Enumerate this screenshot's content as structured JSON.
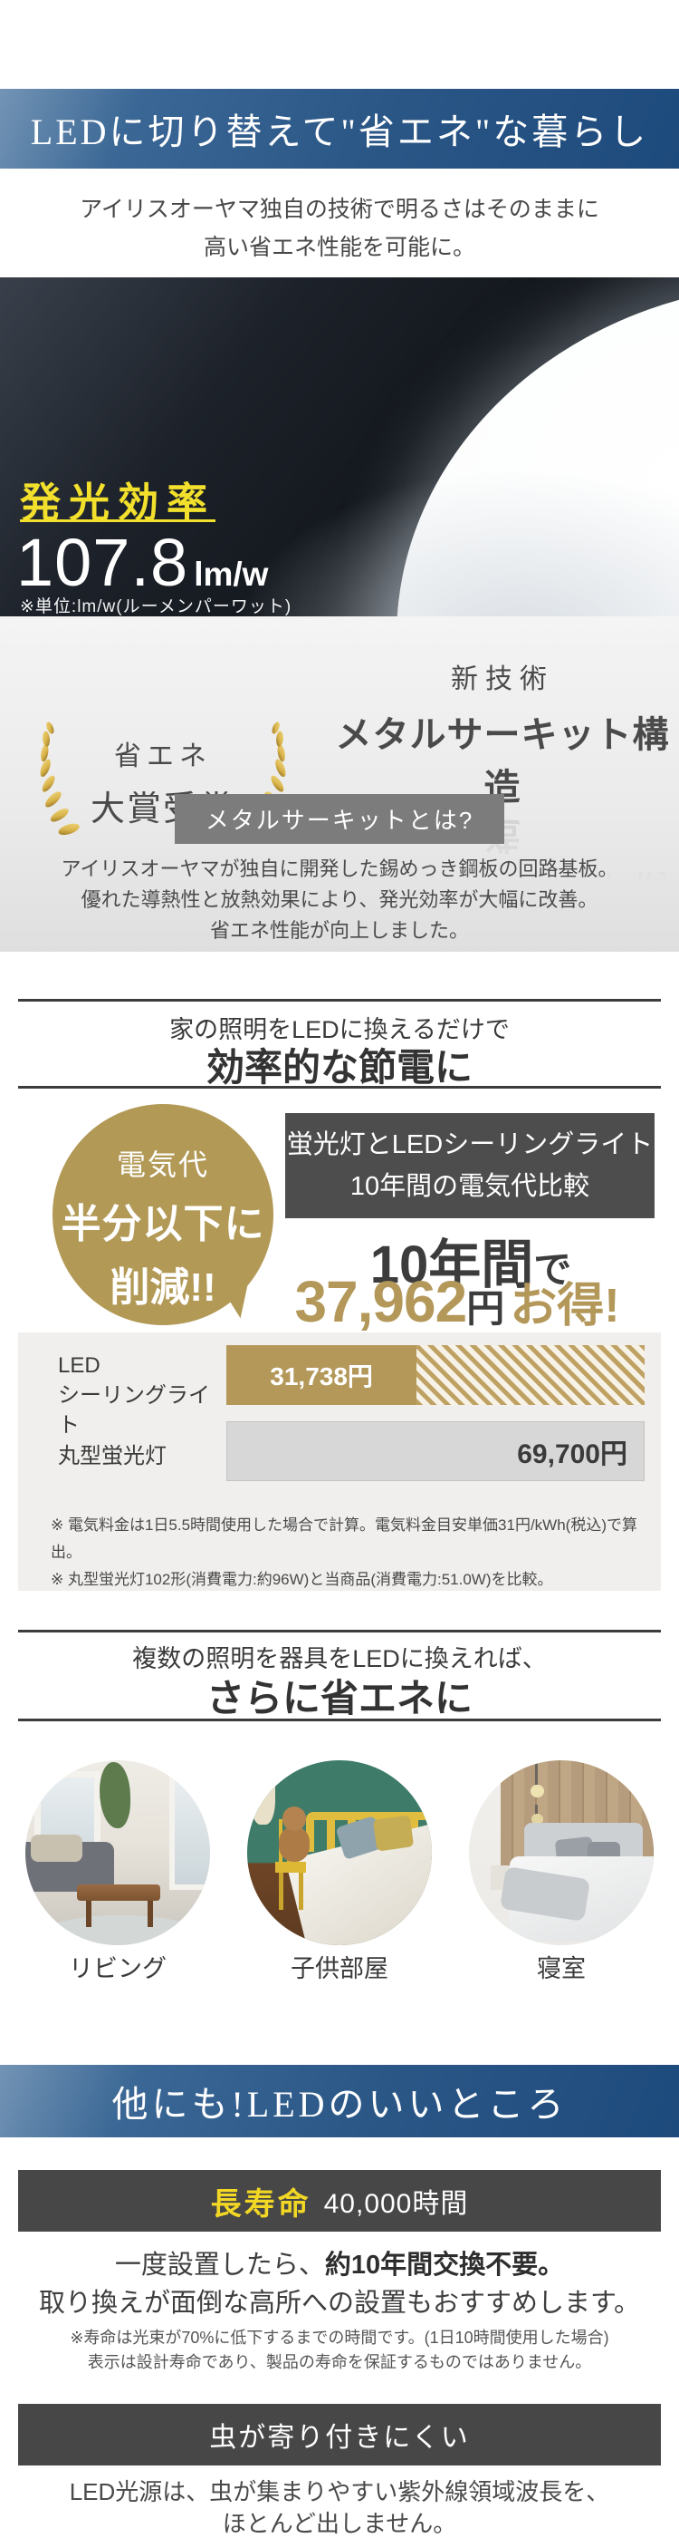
{
  "colors": {
    "banner_blue": "#2b5787",
    "accent_gold": "#b3985a",
    "highlight_yellow": "#f2e02c",
    "badge_gray": "#4d4d4d",
    "dark_bar_gray": "#474747"
  },
  "banner1": {
    "title": "LEDに切り替えて\"省エネ\"な暮らし"
  },
  "intro": {
    "line1": "アイリスオーヤマ独自の技術で明るさはそのままに",
    "line2": "高い省エネ性能を可能に。"
  },
  "hero": {
    "label": "発光効率",
    "value": "107.8",
    "unit": "lm/w",
    "note": "※単位:lm/w(ルーメンパーワット)"
  },
  "awards": {
    "left": {
      "line1": "省エネ",
      "line2": "大賞受賞"
    },
    "right": {
      "small": "新技術",
      "large": "メタルサーキット構造"
    }
  },
  "metal_circuit": {
    "badge": "メタルサーキットとは?",
    "line1": "アイリスオーヤマが独自に開発した錫めっき鋼板の回路基板。",
    "line2": "優れた導熱性と放熱効果により、発光効率が大幅に改善。",
    "line3": "省エネ性能が向上しました。"
  },
  "saving": {
    "heading_small": "家の照明をLEDに換えるだけで",
    "heading_large": "効率的な節電に",
    "bubble": {
      "line1": "電気代",
      "line2": "半分以下に",
      "line3": "削減!!"
    },
    "badge_line1": "蛍光灯とLEDシーリングライト",
    "badge_line2": "10年間の電気代比較",
    "period": "10年間",
    "period_suffix": "で",
    "amount": "37,962",
    "amount_unit": "円",
    "amount_suffix": "お得!",
    "bar1_label_line1": "LED",
    "bar1_label_line2": "シーリングライト",
    "bar2_label": "丸型蛍光灯",
    "note1": "※ 電気料金は1日5.5時間使用した場合で計算。電気料金目安単価31円/kWh(税込)で算出。",
    "note2": "※ 丸型蛍光灯102形(消費電力:約96W)と当商品(消費電力:51.0W)を比較。"
  },
  "chart_data": {
    "type": "bar",
    "title": "蛍光灯とLEDシーリングライト 10年間の電気代比較",
    "categories": [
      "LEDシーリングライト",
      "丸型蛍光灯"
    ],
    "values": [
      31738,
      69700
    ],
    "unit": "円",
    "value_labels": [
      "31,738円",
      "69,700円"
    ],
    "bar_colors": [
      "#b3985a",
      "#d7d7d7"
    ],
    "savings_over_10_years": 37962,
    "layout": "horizontal bars, LED bar partially solid gold with hatched remainder up to fluorescent total"
  },
  "rooms": {
    "heading_small": "複数の照明を器具をLEDに換えれば、",
    "heading_large": "さらに省エネに",
    "labels": [
      "リビング",
      "子供部屋",
      "寝室"
    ]
  },
  "banner2": {
    "title": "他にも!LEDのいいところ"
  },
  "longlife": {
    "badge_highlight": "長寿命",
    "badge_value": "40,000時間",
    "body1_normal": "一度設置したら、",
    "body1_bold": "約10年間交換不要。",
    "body2": "取り換えが面倒な高所への設置もおすすめします。",
    "note1": "※寿命は光束が70%に低下するまでの時間です。(1日10時間使用した場合)",
    "note2": "表示は設計寿命であり、製品の寿命を保証するものではありません。"
  },
  "insect": {
    "badge": "虫が寄り付きにくい",
    "body1": "LED光源は、虫が集まりやすい紫外線領域波長を、",
    "body2": "ほとんど出しません。"
  }
}
